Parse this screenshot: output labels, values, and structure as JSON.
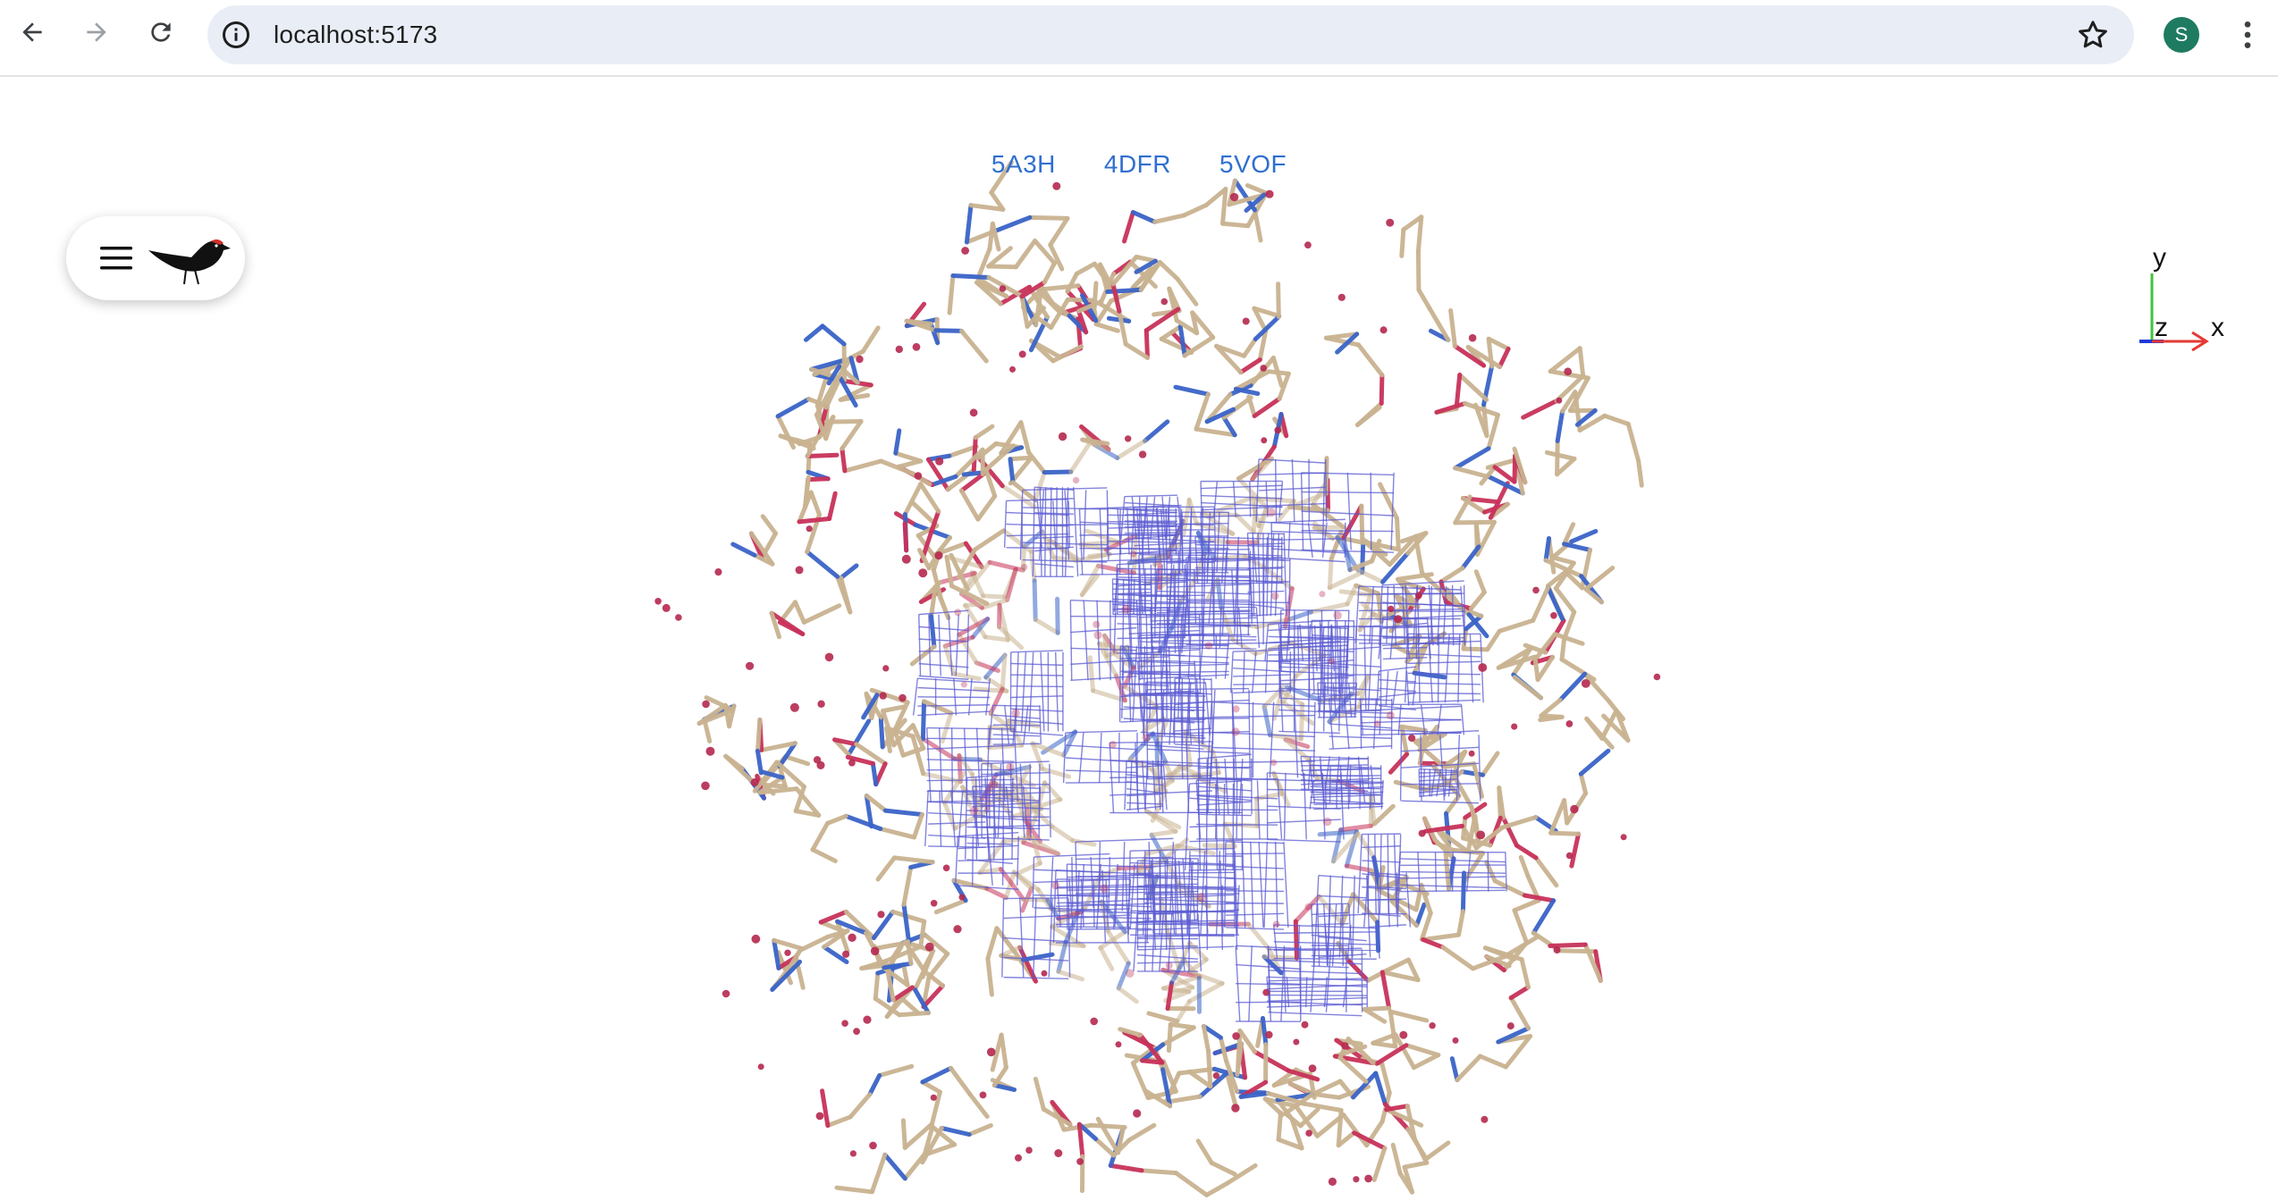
{
  "browser": {
    "url": "localhost:5173",
    "profile_initial": "S",
    "icons": {
      "back": "arrow-left-icon",
      "forward": "arrow-right-icon",
      "reload": "reload-icon",
      "site_info": "info-icon",
      "bookmark": "star-icon",
      "menu": "kebab-menu-icon"
    }
  },
  "app": {
    "entry_links": [
      "5A3H",
      "4DFR",
      "5VOF"
    ],
    "menu_icon": "hamburger-icon",
    "logo_icon": "bird-logo-icon",
    "axes": {
      "x": "x",
      "y": "y",
      "z": "z"
    },
    "colors": {
      "link": "#2f6fd0",
      "carbon": "#c9b391",
      "oxygen": "#c8325a",
      "nitrogen": "#3a64c8",
      "water": "#b5284f",
      "density_mesh": "#5a5ad2",
      "axis_x": "#e53935",
      "axis_y": "#43c13b",
      "axis_z": "#1e3ad8"
    }
  }
}
